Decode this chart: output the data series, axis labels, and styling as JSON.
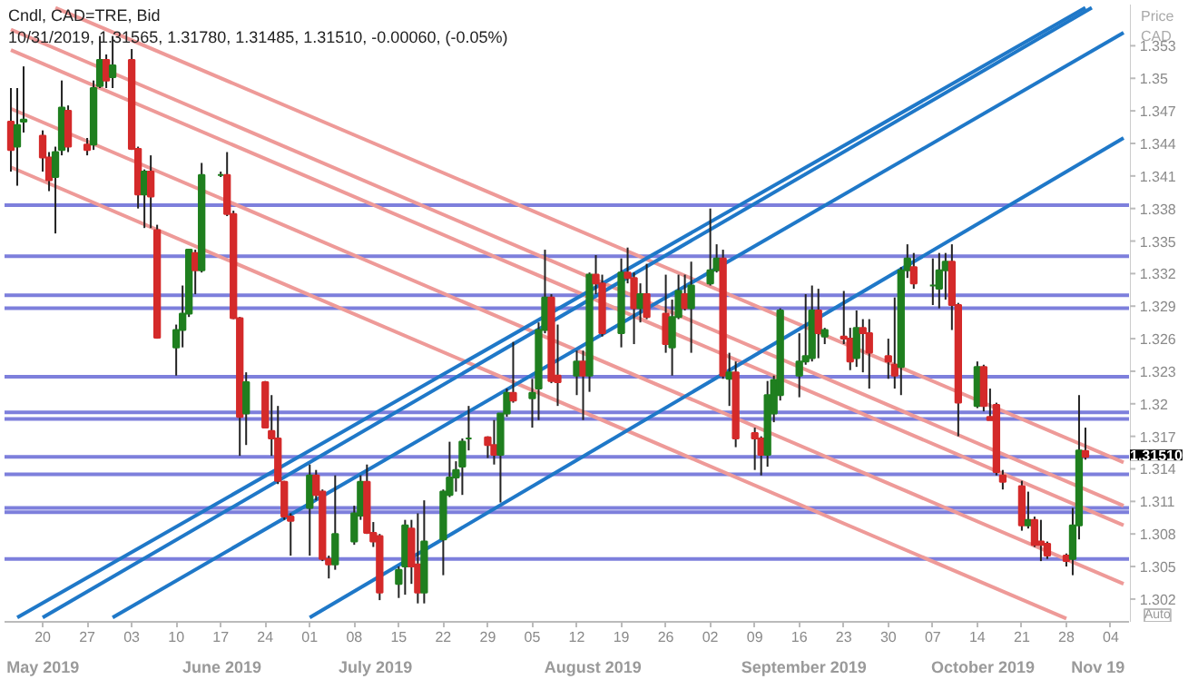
{
  "chart_data": {
    "type": "candlestick",
    "title": "Cndl, CAD=TRE, Bid",
    "subtitle": "10/31/2019, 1.31565, 1.31780, 1.31485, 1.31510, -0.00060, (-0.05%)",
    "ylabel": "Price CAD",
    "annotations": [
      "Auto"
    ],
    "xlim": [
      "2019-05-14",
      "2019-11-07"
    ],
    "xticks": [
      {
        "value": "2019-05-20",
        "label": "20"
      },
      {
        "value": "2019-05-27",
        "label": "27"
      },
      {
        "value": "2019-06-03",
        "label": "03"
      },
      {
        "value": "2019-06-10",
        "label": "10"
      },
      {
        "value": "2019-06-17",
        "label": "17"
      },
      {
        "value": "2019-06-24",
        "label": "24"
      },
      {
        "value": "2019-07-01",
        "label": "01"
      },
      {
        "value": "2019-07-08",
        "label": "08"
      },
      {
        "value": "2019-07-15",
        "label": "15"
      },
      {
        "value": "2019-07-22",
        "label": "22"
      },
      {
        "value": "2019-07-29",
        "label": "29"
      },
      {
        "value": "2019-08-05",
        "label": "05"
      },
      {
        "value": "2019-08-12",
        "label": "12"
      },
      {
        "value": "2019-08-19",
        "label": "19"
      },
      {
        "value": "2019-08-26",
        "label": "26"
      },
      {
        "value": "2019-09-02",
        "label": "02"
      },
      {
        "value": "2019-09-09",
        "label": "09"
      },
      {
        "value": "2019-09-16",
        "label": "16"
      },
      {
        "value": "2019-09-23",
        "label": "23"
      },
      {
        "value": "2019-09-30",
        "label": "30"
      },
      {
        "value": "2019-10-07",
        "label": "07"
      },
      {
        "value": "2019-10-14",
        "label": "14"
      },
      {
        "value": "2019-10-21",
        "label": "21"
      },
      {
        "value": "2019-10-28",
        "label": "28"
      },
      {
        "value": "2019-11-04",
        "label": "04"
      }
    ],
    "x2ticks": [
      {
        "value": "2019-05-21",
        "label": "May 2019"
      },
      {
        "value": "2019-06-18",
        "label": "June 2019"
      },
      {
        "value": "2019-07-12",
        "label": "July 2019"
      },
      {
        "value": "2019-08-15",
        "label": "August 2019"
      },
      {
        "value": "2019-09-17",
        "label": "September 2019"
      },
      {
        "value": "2019-10-15",
        "label": "October 2019"
      },
      {
        "value": "2019-11-02",
        "label": "Nov 19"
      }
    ],
    "ylim": [
      1.2999,
      1.3568
    ],
    "yticks": [
      1.302,
      1.305,
      1.308,
      1.311,
      1.314,
      1.317,
      1.32,
      1.323,
      1.326,
      1.329,
      1.332,
      1.335,
      1.338,
      1.341,
      1.344,
      1.347,
      1.35,
      1.353
    ],
    "grid": false,
    "x2lim": [
      "2019-05-15",
      "2019-11-07"
    ],
    "ref_lines": [
      {
        "axis": "y",
        "value": 1.3383,
        "color": "#7d7fdc"
      },
      {
        "axis": "y",
        "value": 1.3336,
        "color": "#7d7fdc"
      },
      {
        "axis": "y",
        "value": 1.33,
        "color": "#7d7fdc"
      },
      {
        "axis": "y",
        "value": 1.3288,
        "color": "#7d7fdc"
      },
      {
        "axis": "y",
        "value": 1.3225,
        "color": "#7d7fdc"
      },
      {
        "axis": "y",
        "value": 1.3192,
        "color": "#7d7fdc"
      },
      {
        "axis": "y",
        "value": 1.3186,
        "color": "#7d7fdc"
      },
      {
        "axis": "y",
        "value": 1.3151,
        "color": "#7d7fdc",
        "label": "1.31510"
      },
      {
        "axis": "y",
        "value": 1.3135,
        "color": "#7d7fdc"
      },
      {
        "axis": "y",
        "value": 1.3104,
        "color": "#7d7fdc"
      },
      {
        "axis": "y",
        "value": 1.31,
        "color": "#7d7fdc"
      },
      {
        "axis": "y",
        "value": 1.3057,
        "color": "#7d7fdc"
      }
    ],
    "series": [
      {
        "type": "line",
        "color": "#ee9a98",
        "x": [
          "2019-05-22",
          "2019-11-06"
        ],
        "values": [
          1.3565,
          1.3146
        ]
      },
      {
        "type": "line",
        "color": "#ee9a98",
        "x": [
          "2019-05-15",
          "2019-11-06"
        ],
        "values": [
          1.3545,
          1.3106
        ]
      },
      {
        "type": "line",
        "color": "#ee9a98",
        "x": [
          "2019-05-15",
          "2019-11-06"
        ],
        "values": [
          1.3526,
          1.3088
        ]
      },
      {
        "type": "line",
        "color": "#ee9a98",
        "x": [
          "2019-05-15",
          "2019-11-06"
        ],
        "values": [
          1.3472,
          1.3034
        ]
      },
      {
        "type": "line",
        "color": "#ee9a98",
        "x": [
          "2019-05-15",
          "2019-10-28"
        ],
        "values": [
          1.3418,
          1.3002
        ]
      },
      {
        "type": "line",
        "color": "#1f78c8",
        "x": [
          "2019-05-16",
          "2019-10-31"
        ],
        "values": [
          1.3003,
          1.3565
        ]
      },
      {
        "type": "line",
        "color": "#1f78c8",
        "x": [
          "2019-05-20",
          "2019-11-01"
        ],
        "values": [
          1.3003,
          1.3565
        ]
      },
      {
        "type": "line",
        "color": "#1f78c8",
        "x": [
          "2019-05-31",
          "2019-11-06"
        ],
        "values": [
          1.3003,
          1.3542
        ]
      },
      {
        "type": "line",
        "color": "#1f78c8",
        "x": [
          "2019-07-01",
          "2019-11-06"
        ],
        "values": [
          1.3003,
          1.3445
        ]
      },
      {
        "x": [
          "2019-05-15",
          "2019-05-16",
          "2019-05-17",
          "2019-05-20",
          "2019-05-21",
          "2019-05-22",
          "2019-05-23",
          "2019-05-24",
          "2019-05-27",
          "2019-05-28",
          "2019-05-29",
          "2019-05-30",
          "2019-05-31",
          "2019-06-03",
          "2019-06-04",
          "2019-06-05",
          "2019-06-06",
          "2019-06-07",
          "2019-06-10",
          "2019-06-11",
          "2019-06-12",
          "2019-06-13",
          "2019-06-14",
          "2019-06-17",
          "2019-06-18",
          "2019-06-19",
          "2019-06-20",
          "2019-06-21",
          "2019-06-24",
          "2019-06-25",
          "2019-06-26",
          "2019-06-27",
          "2019-06-28",
          "2019-07-01",
          "2019-07-02",
          "2019-07-03",
          "2019-07-04",
          "2019-07-05",
          "2019-07-08",
          "2019-07-09",
          "2019-07-10",
          "2019-07-11",
          "2019-07-12",
          "2019-07-15",
          "2019-07-16",
          "2019-07-17",
          "2019-07-18",
          "2019-07-19",
          "2019-07-22",
          "2019-07-23",
          "2019-07-24",
          "2019-07-25",
          "2019-07-26",
          "2019-07-29",
          "2019-07-30",
          "2019-07-31",
          "2019-08-01",
          "2019-08-02",
          "2019-08-05",
          "2019-08-06",
          "2019-08-07",
          "2019-08-08",
          "2019-08-09",
          "2019-08-12",
          "2019-08-13",
          "2019-08-14",
          "2019-08-15",
          "2019-08-16",
          "2019-08-19",
          "2019-08-20",
          "2019-08-21",
          "2019-08-22",
          "2019-08-23",
          "2019-08-26",
          "2019-08-27",
          "2019-08-28",
          "2019-08-29",
          "2019-08-30",
          "2019-09-02",
          "2019-09-03",
          "2019-09-04",
          "2019-09-05",
          "2019-09-06",
          "2019-09-09",
          "2019-09-10",
          "2019-09-11",
          "2019-09-12",
          "2019-09-13",
          "2019-09-16",
          "2019-09-17",
          "2019-09-18",
          "2019-09-19",
          "2019-09-20",
          "2019-09-23",
          "2019-09-24",
          "2019-09-25",
          "2019-09-26",
          "2019-09-27",
          "2019-09-30",
          "2019-10-01",
          "2019-10-02",
          "2019-10-03",
          "2019-10-04",
          "2019-10-07",
          "2019-10-08",
          "2019-10-09",
          "2019-10-10",
          "2019-10-11",
          "2019-10-14",
          "2019-10-15",
          "2019-10-16",
          "2019-10-17",
          "2019-10-18",
          "2019-10-21",
          "2019-10-22",
          "2019-10-23",
          "2019-10-24",
          "2019-10-25",
          "2019-10-28",
          "2019-10-29",
          "2019-10-30",
          "2019-10-31"
        ],
        "ohlc": [
          [
            1.346,
            1.3491,
            1.3414,
            1.3434
          ],
          [
            1.3437,
            1.3491,
            1.3401,
            1.3457
          ],
          [
            1.346,
            1.3511,
            1.345,
            1.3462
          ],
          [
            1.3447,
            1.3452,
            1.3414,
            1.3427
          ],
          [
            1.3427,
            1.3432,
            1.3396,
            1.3406
          ],
          [
            1.3409,
            1.3437,
            1.3357,
            1.3432
          ],
          [
            1.3434,
            1.3498,
            1.3429,
            1.3473
          ],
          [
            1.347,
            1.3475,
            1.3432,
            1.3437
          ],
          [
            1.3439,
            1.3445,
            1.3429,
            1.3434
          ],
          [
            1.3439,
            1.3498,
            1.3434,
            1.3491
          ],
          [
            1.3493,
            1.3539,
            1.3491,
            1.3517
          ],
          [
            1.3517,
            1.3522,
            1.3491,
            1.3498
          ],
          [
            1.3501,
            1.3539,
            1.3491,
            1.3512
          ],
          [
            1.3517,
            1.3527,
            1.3434,
            1.3435
          ],
          [
            1.3435,
            1.3437,
            1.338,
            1.3393
          ],
          [
            1.3393,
            1.3416,
            1.3362,
            1.3414
          ],
          [
            1.3414,
            1.3429,
            1.3362,
            1.3391
          ],
          [
            1.336,
            1.3365,
            1.326,
            1.3261
          ],
          [
            1.3252,
            1.3273,
            1.3226,
            1.3268
          ],
          [
            1.3268,
            1.3309,
            1.3252,
            1.3283
          ],
          [
            1.3283,
            1.3342,
            1.328,
            1.3342
          ],
          [
            1.3339,
            1.3342,
            1.3301,
            1.3323
          ],
          [
            1.3323,
            1.3422,
            1.3321,
            1.3411
          ],
          [
            1.3411,
            1.3414,
            1.3409,
            1.3411
          ],
          [
            1.3411,
            1.3432,
            1.3373,
            1.3375
          ],
          [
            1.3375,
            1.3378,
            1.3278,
            1.3279
          ],
          [
            1.3279,
            1.328,
            1.3152,
            1.3188
          ],
          [
            1.3191,
            1.3229,
            1.3162,
            1.322
          ],
          [
            1.322,
            1.3221,
            1.3178,
            1.3178
          ],
          [
            1.3175,
            1.3208,
            1.3152,
            1.3168
          ],
          [
            1.3168,
            1.3198,
            1.3126,
            1.3129
          ],
          [
            1.3128,
            1.3129,
            1.3093,
            1.3096
          ],
          [
            1.3096,
            1.3099,
            1.306,
            1.3092
          ],
          [
            1.3104,
            1.3144,
            1.306,
            1.3134
          ],
          [
            1.3134,
            1.3139,
            1.3111,
            1.3116
          ],
          [
            1.3119,
            1.3121,
            1.3055,
            1.3057
          ],
          [
            1.3057,
            1.306,
            1.3039,
            1.3052
          ],
          [
            1.3052,
            1.3134,
            1.3047,
            1.308
          ],
          [
            1.3073,
            1.3106,
            1.307,
            1.3099
          ],
          [
            1.3097,
            1.3134,
            1.3093,
            1.3128
          ],
          [
            1.3128,
            1.3144,
            1.308,
            1.3081
          ],
          [
            1.3081,
            1.3091,
            1.3068,
            1.3073
          ],
          [
            1.3078,
            1.308,
            1.3019,
            1.3026
          ],
          [
            1.3034,
            1.305,
            1.3021,
            1.3047
          ],
          [
            1.305,
            1.3093,
            1.3024,
            1.3088
          ],
          [
            1.3085,
            1.3093,
            1.3034,
            1.305
          ],
          [
            1.3052,
            1.3099,
            1.3016,
            1.3026
          ],
          [
            1.3026,
            1.3111,
            1.3016,
            1.3073
          ],
          [
            1.3075,
            1.3121,
            1.3042,
            1.3119
          ],
          [
            1.3116,
            1.3165,
            1.3114,
            1.3132
          ],
          [
            1.3132,
            1.3147,
            1.3119,
            1.3139
          ],
          [
            1.3142,
            1.3168,
            1.3116,
            1.3165
          ],
          [
            1.3168,
            1.3198,
            1.3157,
            1.3168
          ],
          [
            1.3169,
            1.317,
            1.315,
            1.3162
          ],
          [
            1.3162,
            1.3185,
            1.3144,
            1.3153
          ],
          [
            1.3153,
            1.3191,
            1.3109,
            1.3191
          ],
          [
            1.3191,
            1.3214,
            1.3188,
            1.321
          ],
          [
            1.321,
            1.3257,
            1.3201,
            1.3203
          ],
          [
            1.3205,
            1.3223,
            1.3178,
            1.321
          ],
          [
            1.3214,
            1.3275,
            1.3185,
            1.3268
          ],
          [
            1.3268,
            1.3342,
            1.3265,
            1.3298
          ],
          [
            1.3298,
            1.3301,
            1.3219,
            1.3221
          ],
          [
            1.3226,
            1.3273,
            1.3198,
            1.322
          ],
          [
            1.3226,
            1.3249,
            1.3208,
            1.3239
          ],
          [
            1.3239,
            1.3249,
            1.3185,
            1.3226
          ],
          [
            1.3226,
            1.3321,
            1.3211,
            1.3319
          ],
          [
            1.3319,
            1.3337,
            1.3301,
            1.3311
          ],
          [
            1.3311,
            1.3319,
            1.3262,
            1.3265
          ],
          [
            1.3265,
            1.3334,
            1.3252,
            1.3321
          ],
          [
            1.3321,
            1.3344,
            1.3311,
            1.3316
          ],
          [
            1.3316,
            1.3321,
            1.3255,
            1.3288
          ],
          [
            1.3288,
            1.3311,
            1.3275,
            1.3301
          ],
          [
            1.3301,
            1.3329,
            1.3278,
            1.328
          ],
          [
            1.3283,
            1.3319,
            1.3247,
            1.3255
          ],
          [
            1.3252,
            1.3296,
            1.3226,
            1.328
          ],
          [
            1.328,
            1.3319,
            1.3278,
            1.3304
          ],
          [
            1.3301,
            1.3319,
            1.3286,
            1.3288
          ],
          [
            1.3288,
            1.3331,
            1.3247,
            1.3309
          ],
          [
            1.3311,
            1.338,
            1.3309,
            1.3323
          ],
          [
            1.3323,
            1.3347,
            1.3321,
            1.3334
          ],
          [
            1.3334,
            1.3342,
            1.3223,
            1.3226
          ],
          [
            1.3223,
            1.3247,
            1.3198,
            1.3229
          ],
          [
            1.3229,
            1.3239,
            1.316,
            1.3168
          ],
          [
            1.3173,
            1.3178,
            1.3139,
            1.3168
          ],
          [
            1.3168,
            1.317,
            1.3134,
            1.3153
          ],
          [
            1.3153,
            1.3221,
            1.3142,
            1.3208
          ],
          [
            1.3191,
            1.3226,
            1.3183,
            1.3222
          ],
          [
            1.3208,
            1.3288,
            1.3203,
            1.3286
          ],
          [
            1.3226,
            1.3265,
            1.3206,
            1.3239
          ],
          [
            1.3239,
            1.3301,
            1.3236,
            1.3244
          ],
          [
            1.3242,
            1.3309,
            1.3239,
            1.3286
          ],
          [
            1.3286,
            1.3306,
            1.3242,
            1.3265
          ],
          [
            1.3262,
            1.327,
            1.3255,
            1.3268
          ],
          [
            1.3262,
            1.3304,
            1.3255,
            1.326
          ],
          [
            1.326,
            1.327,
            1.3231,
            1.3239
          ],
          [
            1.3242,
            1.3286,
            1.3234,
            1.327
          ],
          [
            1.327,
            1.3278,
            1.3229,
            1.3265
          ],
          [
            1.3265,
            1.3278,
            1.3214,
            1.3247
          ],
          [
            1.3244,
            1.326,
            1.3223,
            1.3239
          ],
          [
            1.3236,
            1.3298,
            1.3214,
            1.3226
          ],
          [
            1.3234,
            1.3326,
            1.3208,
            1.3323
          ],
          [
            1.3323,
            1.3347,
            1.3316,
            1.3334
          ],
          [
            1.3326,
            1.3339,
            1.3306,
            1.3311
          ],
          [
            1.3309,
            1.3334,
            1.3291,
            1.3309
          ],
          [
            1.3306,
            1.3339,
            1.3288,
            1.3323
          ],
          [
            1.3323,
            1.3339,
            1.3296,
            1.3331
          ],
          [
            1.3331,
            1.3347,
            1.3268,
            1.3291
          ],
          [
            1.3291,
            1.3293,
            1.317,
            1.3201
          ],
          [
            1.3198,
            1.3239,
            1.3196,
            1.3234
          ],
          [
            1.3234,
            1.3236,
            1.3193,
            1.3198
          ],
          [
            1.3188,
            1.3214,
            1.3185,
            1.3185
          ],
          [
            1.3199,
            1.3201,
            1.3134,
            1.3137
          ],
          [
            1.3134,
            1.3139,
            1.3121,
            1.3128
          ],
          [
            1.3124,
            1.3129,
            1.3083,
            1.3088
          ],
          [
            1.3088,
            1.3119,
            1.3085,
            1.3093
          ],
          [
            1.3093,
            1.3096,
            1.3068,
            1.307
          ],
          [
            1.3073,
            1.3093,
            1.3055,
            1.307
          ],
          [
            1.3071,
            1.3073,
            1.3057,
            1.306
          ],
          [
            1.306,
            1.3062,
            1.305,
            1.3055
          ],
          [
            1.3057,
            1.3104,
            1.3042,
            1.3088
          ],
          [
            1.3088,
            1.3208,
            1.3075,
            1.3157
          ],
          [
            1.31565,
            1.3178,
            1.31485,
            1.3151
          ]
        ],
        "colors": [
          "#d42a2a",
          "#1f7f1f",
          "#1f7f1f",
          "#d42a2a",
          "#d42a2a",
          "#1f7f1f",
          "#1f7f1f",
          "#d42a2a",
          "#d42a2a",
          "#1f7f1f",
          "#1f7f1f",
          "#d42a2a",
          "#1f7f1f",
          "#d42a2a",
          "#d42a2a",
          "#1f7f1f",
          "#d42a2a",
          "#d42a2a",
          "#1f7f1f",
          "#1f7f1f",
          "#1f7f1f",
          "#d42a2a",
          "#1f7f1f",
          "#1f7f1f",
          "#d42a2a",
          "#d42a2a",
          "#d42a2a",
          "#1f7f1f",
          "#d42a2a",
          "#d42a2a",
          "#d42a2a",
          "#d42a2a",
          "#d42a2a",
          "#1f7f1f",
          "#d42a2a",
          "#d42a2a",
          "#d42a2a",
          "#1f7f1f",
          "#1f7f1f",
          "#1f7f1f",
          "#d42a2a",
          "#d42a2a",
          "#d42a2a",
          "#1f7f1f",
          "#1f7f1f",
          "#d42a2a",
          "#d42a2a",
          "#1f7f1f",
          "#1f7f1f",
          "#1f7f1f",
          "#1f7f1f",
          "#1f7f1f",
          "#1f7f1f",
          "#d42a2a",
          "#d42a2a",
          "#1f7f1f",
          "#1f7f1f",
          "#d42a2a",
          "#1f7f1f",
          "#1f7f1f",
          "#1f7f1f",
          "#d42a2a",
          "#d42a2a",
          "#1f7f1f",
          "#d42a2a",
          "#1f7f1f",
          "#d42a2a",
          "#d42a2a",
          "#1f7f1f",
          "#d42a2a",
          "#d42a2a",
          "#1f7f1f",
          "#d42a2a",
          "#d42a2a",
          "#1f7f1f",
          "#1f7f1f",
          "#d42a2a",
          "#1f7f1f",
          "#1f7f1f",
          "#1f7f1f",
          "#d42a2a",
          "#1f7f1f",
          "#d42a2a",
          "#d42a2a",
          "#d42a2a",
          "#1f7f1f",
          "#1f7f1f",
          "#1f7f1f",
          "#1f7f1f",
          "#1f7f1f",
          "#1f7f1f",
          "#d42a2a",
          "#1f7f1f",
          "#d42a2a",
          "#d42a2a",
          "#1f7f1f",
          "#d42a2a",
          "#d42a2a",
          "#d42a2a",
          "#d42a2a",
          "#1f7f1f",
          "#1f7f1f",
          "#d42a2a",
          "#1f7f1f",
          "#1f7f1f",
          "#1f7f1f",
          "#d42a2a",
          "#d42a2a",
          "#1f7f1f",
          "#d42a2a",
          "#d42a2a",
          "#d42a2a",
          "#d42a2a",
          "#d42a2a",
          "#1f7f1f",
          "#d42a2a",
          "#d42a2a",
          "#d42a2a",
          "#d42a2a",
          "#1f7f1f",
          "#1f7f1f",
          "#d42a2a"
        ]
      }
    ]
  }
}
